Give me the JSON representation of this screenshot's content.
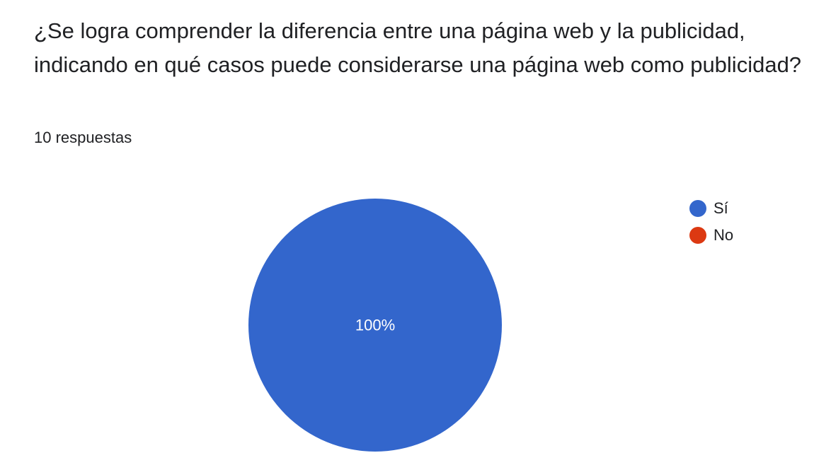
{
  "question": "¿Se logra comprender la diferencia entre una página web y la publicidad, indicando en qué casos puede considerarse una página web como publicidad?",
  "responses_count": "10 respuestas",
  "chart_data": {
    "type": "pie",
    "categories": [
      "Sí",
      "No"
    ],
    "values": [
      10,
      0
    ],
    "percent_labels": [
      "100%",
      ""
    ],
    "colors": [
      "#3366cc",
      "#dc3912"
    ],
    "legend_position": "top-right"
  }
}
